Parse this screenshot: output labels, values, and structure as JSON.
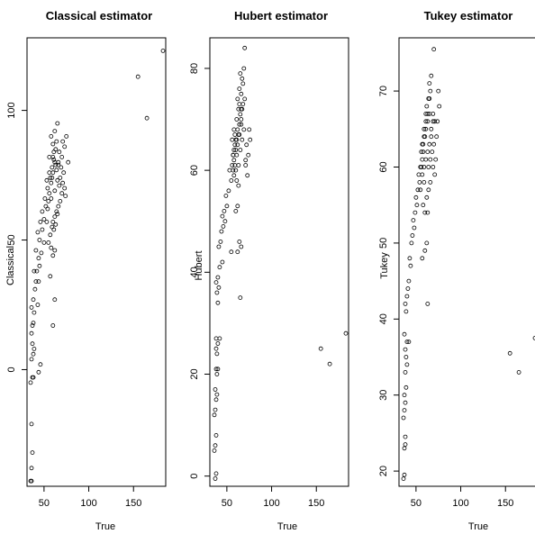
{
  "chart_data": [
    {
      "type": "scatter",
      "title": "Classical estimator",
      "xlabel": "True",
      "ylabel": "Classical",
      "xlim": [
        31,
        186
      ],
      "ylim": [
        -45,
        128
      ],
      "xticks": [
        {
          "value": 50,
          "label": "50"
        },
        {
          "value": 100,
          "label": "100"
        },
        {
          "value": 150,
          "label": "150"
        }
      ],
      "yticks": [
        {
          "value": 0,
          "label": "0"
        },
        {
          "value": 50,
          "label": "50"
        },
        {
          "value": 100,
          "label": "100"
        }
      ],
      "points": [
        [
          35,
          -43
        ],
        [
          36,
          -43
        ],
        [
          36,
          -38
        ],
        [
          37,
          -32
        ],
        [
          36,
          -21
        ],
        [
          35,
          -5
        ],
        [
          37,
          -3
        ],
        [
          38,
          -3
        ],
        [
          36,
          4
        ],
        [
          38,
          6
        ],
        [
          39,
          8
        ],
        [
          37,
          10
        ],
        [
          36,
          14
        ],
        [
          38,
          18
        ],
        [
          37,
          17
        ],
        [
          39,
          22
        ],
        [
          36,
          24
        ],
        [
          38,
          27
        ],
        [
          40,
          31
        ],
        [
          43,
          25
        ],
        [
          41,
          34
        ],
        [
          44,
          34
        ],
        [
          39,
          38
        ],
        [
          42,
          38
        ],
        [
          45,
          40
        ],
        [
          44,
          43
        ],
        [
          47,
          45
        ],
        [
          41,
          46
        ],
        [
          50,
          49
        ],
        [
          45,
          50
        ],
        [
          43,
          53
        ],
        [
          48,
          54
        ],
        [
          46,
          57
        ],
        [
          50,
          58
        ],
        [
          53,
          57
        ],
        [
          48,
          61
        ],
        [
          52,
          63
        ],
        [
          55,
          65
        ],
        [
          51,
          66
        ],
        [
          56,
          68
        ],
        [
          54,
          70
        ],
        [
          58,
          72
        ],
        [
          53,
          73
        ],
        [
          57,
          74
        ],
        [
          60,
          76
        ],
        [
          59,
          78
        ],
        [
          62,
          80
        ],
        [
          56,
          82
        ],
        [
          61,
          84
        ],
        [
          63,
          85
        ],
        [
          60,
          87
        ],
        [
          64,
          88
        ],
        [
          58,
          90
        ],
        [
          62,
          92
        ],
        [
          65,
          95
        ],
        [
          67,
          84
        ],
        [
          70,
          82
        ],
        [
          66,
          80
        ],
        [
          69,
          78
        ],
        [
          72,
          76
        ],
        [
          68,
          74
        ],
        [
          71,
          72
        ],
        [
          73,
          70
        ],
        [
          70,
          68
        ],
        [
          74,
          67
        ],
        [
          68,
          65
        ],
        [
          66,
          63
        ],
        [
          64,
          61
        ],
        [
          62,
          59
        ],
        [
          60,
          57
        ],
        [
          63,
          56
        ],
        [
          59,
          55
        ],
        [
          61,
          54
        ],
        [
          57,
          52
        ],
        [
          55,
          49
        ],
        [
          58,
          47
        ],
        [
          62,
          46
        ],
        [
          60,
          44
        ],
        [
          57,
          36
        ],
        [
          62,
          27
        ],
        [
          60,
          17
        ],
        [
          46,
          2
        ],
        [
          44,
          -1
        ],
        [
          75,
          90
        ],
        [
          73,
          86
        ],
        [
          71,
          88
        ],
        [
          77,
          80
        ],
        [
          65,
          73
        ],
        [
          67,
          71
        ],
        [
          62,
          69
        ],
        [
          64,
          77
        ],
        [
          59,
          74
        ],
        [
          66,
          79
        ],
        [
          61,
          81
        ],
        [
          58,
          66
        ],
        [
          56,
          76
        ],
        [
          54,
          62
        ],
        [
          65,
          60
        ],
        [
          63,
          79
        ],
        [
          60,
          82
        ],
        [
          155,
          113
        ],
        [
          165,
          97
        ],
        [
          183,
          123
        ]
      ]
    },
    {
      "type": "scatter",
      "title": "Hubert estimator",
      "xlabel": "True",
      "ylabel": "Hubert",
      "xlim": [
        31,
        186
      ],
      "ylim": [
        -2,
        86
      ],
      "xticks": [
        {
          "value": 50,
          "label": "50"
        },
        {
          "value": 100,
          "label": "100"
        },
        {
          "value": 150,
          "label": "150"
        }
      ],
      "yticks": [
        {
          "value": 0,
          "label": "0"
        },
        {
          "value": 20,
          "label": "20"
        },
        {
          "value": 40,
          "label": "40"
        },
        {
          "value": 60,
          "label": "60"
        },
        {
          "value": 80,
          "label": "80"
        }
      ],
      "points": [
        [
          37,
          -0.5
        ],
        [
          38,
          0.5
        ],
        [
          36,
          5
        ],
        [
          37,
          6
        ],
        [
          38,
          8
        ],
        [
          36,
          12
        ],
        [
          37,
          13
        ],
        [
          38,
          15
        ],
        [
          39,
          16
        ],
        [
          37,
          17
        ],
        [
          39,
          20
        ],
        [
          38,
          21
        ],
        [
          40,
          21
        ],
        [
          39,
          24
        ],
        [
          38,
          25
        ],
        [
          40,
          26
        ],
        [
          42,
          27
        ],
        [
          38,
          27
        ],
        [
          40,
          34
        ],
        [
          39,
          36
        ],
        [
          41,
          37
        ],
        [
          38,
          38
        ],
        [
          40,
          39
        ],
        [
          42,
          41
        ],
        [
          45,
          42
        ],
        [
          41,
          45
        ],
        [
          43,
          46
        ],
        [
          44,
          48
        ],
        [
          46,
          49
        ],
        [
          48,
          50
        ],
        [
          45,
          51
        ],
        [
          47,
          52
        ],
        [
          50,
          53
        ],
        [
          49,
          55
        ],
        [
          52,
          56
        ],
        [
          55,
          58
        ],
        [
          53,
          60
        ],
        [
          56,
          61
        ],
        [
          58,
          62
        ],
        [
          57,
          63
        ],
        [
          60,
          64
        ],
        [
          59,
          65
        ],
        [
          61,
          66
        ],
        [
          63,
          67
        ],
        [
          62,
          68
        ],
        [
          64,
          69
        ],
        [
          66,
          70
        ],
        [
          65,
          71
        ],
        [
          67,
          72
        ],
        [
          68,
          73
        ],
        [
          70,
          74
        ],
        [
          66,
          75
        ],
        [
          64,
          76
        ],
        [
          68,
          77
        ],
        [
          67,
          78
        ],
        [
          65,
          79
        ],
        [
          69,
          80
        ],
        [
          70,
          84
        ],
        [
          72,
          65
        ],
        [
          74,
          63
        ],
        [
          71,
          61
        ],
        [
          73,
          59
        ],
        [
          76,
          66
        ],
        [
          75,
          68
        ],
        [
          71,
          62
        ],
        [
          60,
          60
        ],
        [
          58,
          59
        ],
        [
          61,
          58
        ],
        [
          63,
          57
        ],
        [
          62,
          53
        ],
        [
          60,
          52
        ],
        [
          64,
          46
        ],
        [
          66,
          45
        ],
        [
          62,
          44
        ],
        [
          65,
          35
        ],
        [
          55,
          44
        ],
        [
          57,
          63
        ],
        [
          59,
          67
        ],
        [
          61,
          70
        ],
        [
          63,
          72
        ],
        [
          58,
          64
        ],
        [
          60,
          66
        ],
        [
          62,
          65
        ],
        [
          64,
          67
        ],
        [
          66,
          69
        ],
        [
          61,
          63
        ],
        [
          63,
          61
        ],
        [
          65,
          64
        ],
        [
          67,
          66
        ],
        [
          69,
          68
        ],
        [
          57,
          60
        ],
        [
          59,
          61
        ],
        [
          56,
          66
        ],
        [
          58,
          68
        ],
        [
          62,
          74
        ],
        [
          64,
          73
        ],
        [
          66,
          72
        ],
        [
          155,
          25
        ],
        [
          165,
          22
        ],
        [
          183,
          28
        ]
      ]
    },
    {
      "type": "scatter",
      "title": "Tukey estimator",
      "xlabel": "True",
      "ylabel": "Tukey",
      "xlim": [
        31,
        186
      ],
      "ylim": [
        18,
        77
      ],
      "xticks": [
        {
          "value": 50,
          "label": "50"
        },
        {
          "value": 100,
          "label": "100"
        },
        {
          "value": 150,
          "label": "150"
        }
      ],
      "yticks": [
        {
          "value": 20,
          "label": "20"
        },
        {
          "value": 30,
          "label": "30"
        },
        {
          "value": 40,
          "label": "40"
        },
        {
          "value": 50,
          "label": "50"
        },
        {
          "value": 60,
          "label": "60"
        },
        {
          "value": 70,
          "label": "70"
        }
      ],
      "points": [
        [
          36,
          19
        ],
        [
          37,
          19.5
        ],
        [
          37,
          23
        ],
        [
          38,
          23.5
        ],
        [
          38,
          24.5
        ],
        [
          36,
          27
        ],
        [
          37,
          28
        ],
        [
          38,
          29
        ],
        [
          37,
          30
        ],
        [
          39,
          31
        ],
        [
          38,
          33
        ],
        [
          40,
          34
        ],
        [
          39,
          35
        ],
        [
          38,
          36
        ],
        [
          40,
          37
        ],
        [
          42,
          37
        ],
        [
          37,
          38
        ],
        [
          39,
          41
        ],
        [
          38,
          42
        ],
        [
          40,
          43
        ],
        [
          41,
          44
        ],
        [
          42,
          45
        ],
        [
          44,
          47
        ],
        [
          43,
          48
        ],
        [
          45,
          50
        ],
        [
          46,
          51
        ],
        [
          48,
          52
        ],
        [
          47,
          53
        ],
        [
          49,
          54
        ],
        [
          51,
          55
        ],
        [
          50,
          56
        ],
        [
          52,
          57
        ],
        [
          54,
          58
        ],
        [
          53,
          59
        ],
        [
          55,
          60
        ],
        [
          57,
          61
        ],
        [
          56,
          62
        ],
        [
          58,
          63
        ],
        [
          60,
          64
        ],
        [
          59,
          65
        ],
        [
          61,
          66
        ],
        [
          63,
          67
        ],
        [
          62,
          68
        ],
        [
          64,
          69
        ],
        [
          66,
          70
        ],
        [
          65,
          71
        ],
        [
          67,
          72
        ],
        [
          70,
          75.5
        ],
        [
          68,
          62
        ],
        [
          70,
          63
        ],
        [
          72,
          61
        ],
        [
          69,
          60
        ],
        [
          71,
          59
        ],
        [
          73,
          64
        ],
        [
          74,
          66
        ],
        [
          76,
          68
        ],
        [
          75,
          70
        ],
        [
          66,
          58
        ],
        [
          64,
          57
        ],
        [
          62,
          56
        ],
        [
          60,
          54
        ],
        [
          58,
          55
        ],
        [
          63,
          54
        ],
        [
          60,
          49
        ],
        [
          62,
          50
        ],
        [
          57,
          48
        ],
        [
          63,
          42
        ],
        [
          56,
          60
        ],
        [
          58,
          62
        ],
        [
          61,
          65
        ],
        [
          63,
          66
        ],
        [
          65,
          67
        ],
        [
          59,
          60
        ],
        [
          61,
          61
        ],
        [
          63,
          62
        ],
        [
          65,
          63
        ],
        [
          67,
          64
        ],
        [
          69,
          66
        ],
        [
          57,
          59
        ],
        [
          59,
          58
        ],
        [
          55,
          57
        ],
        [
          57,
          63
        ],
        [
          59,
          64
        ],
        [
          61,
          67
        ],
        [
          65,
          69
        ],
        [
          67,
          65
        ],
        [
          69,
          67
        ],
        [
          71,
          66
        ],
        [
          64,
          60
        ],
        [
          66,
          61
        ],
        [
          155,
          35.5
        ],
        [
          165,
          33
        ],
        [
          183,
          37.5
        ]
      ]
    }
  ]
}
